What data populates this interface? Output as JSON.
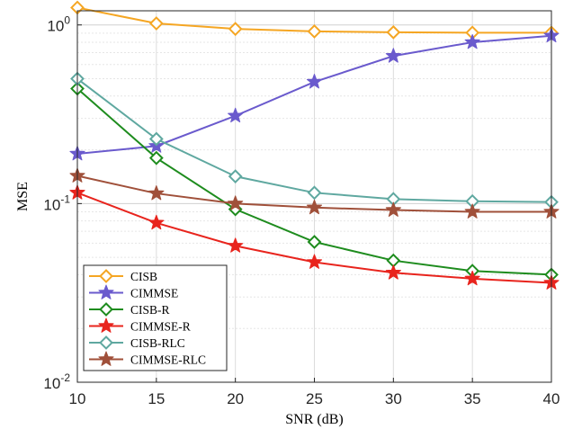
{
  "chart_data": {
    "type": "line",
    "xlabel": "SNR (dB)",
    "ylabel": "MSE",
    "x": [
      10,
      15,
      20,
      25,
      30,
      35,
      40
    ],
    "xlim": [
      10,
      40
    ],
    "ylim": [
      0.01,
      1.2
    ],
    "yscale": "log",
    "grid": true,
    "legend_position": "bottom-left",
    "xticks": [
      "10",
      "15",
      "20",
      "25",
      "30",
      "35",
      "40"
    ],
    "yticks": [
      {
        "value": 1,
        "base": "10",
        "exp": "0"
      },
      {
        "value": 0.1,
        "base": "10",
        "exp": "-1"
      },
      {
        "value": 0.01,
        "base": "10",
        "exp": "-2"
      }
    ],
    "series": [
      {
        "name": "CISB",
        "marker": "diamond",
        "color": "#f5a623",
        "values": [
          1.25,
          1.02,
          0.95,
          0.92,
          0.91,
          0.905,
          0.905
        ]
      },
      {
        "name": "CIMMSE",
        "marker": "star",
        "color": "#6a5acd",
        "values": [
          0.19,
          0.21,
          0.31,
          0.48,
          0.67,
          0.8,
          0.87
        ]
      },
      {
        "name": "CISB-R",
        "marker": "diamond",
        "color": "#1e8c1e",
        "values": [
          0.44,
          0.18,
          0.093,
          0.061,
          0.048,
          0.042,
          0.04
        ]
      },
      {
        "name": "CIMMSE-R",
        "marker": "star",
        "color": "#e8241d",
        "values": [
          0.115,
          0.078,
          0.058,
          0.047,
          0.041,
          0.038,
          0.036
        ]
      },
      {
        "name": "CISB-RLC",
        "marker": "diamond",
        "color": "#5fa8a0",
        "values": [
          0.5,
          0.23,
          0.142,
          0.115,
          0.106,
          0.103,
          0.102
        ]
      },
      {
        "name": "CIMMSE-RLC",
        "marker": "star",
        "color": "#a0503a",
        "values": [
          0.143,
          0.114,
          0.1,
          0.095,
          0.092,
          0.09,
          0.09
        ]
      }
    ]
  }
}
